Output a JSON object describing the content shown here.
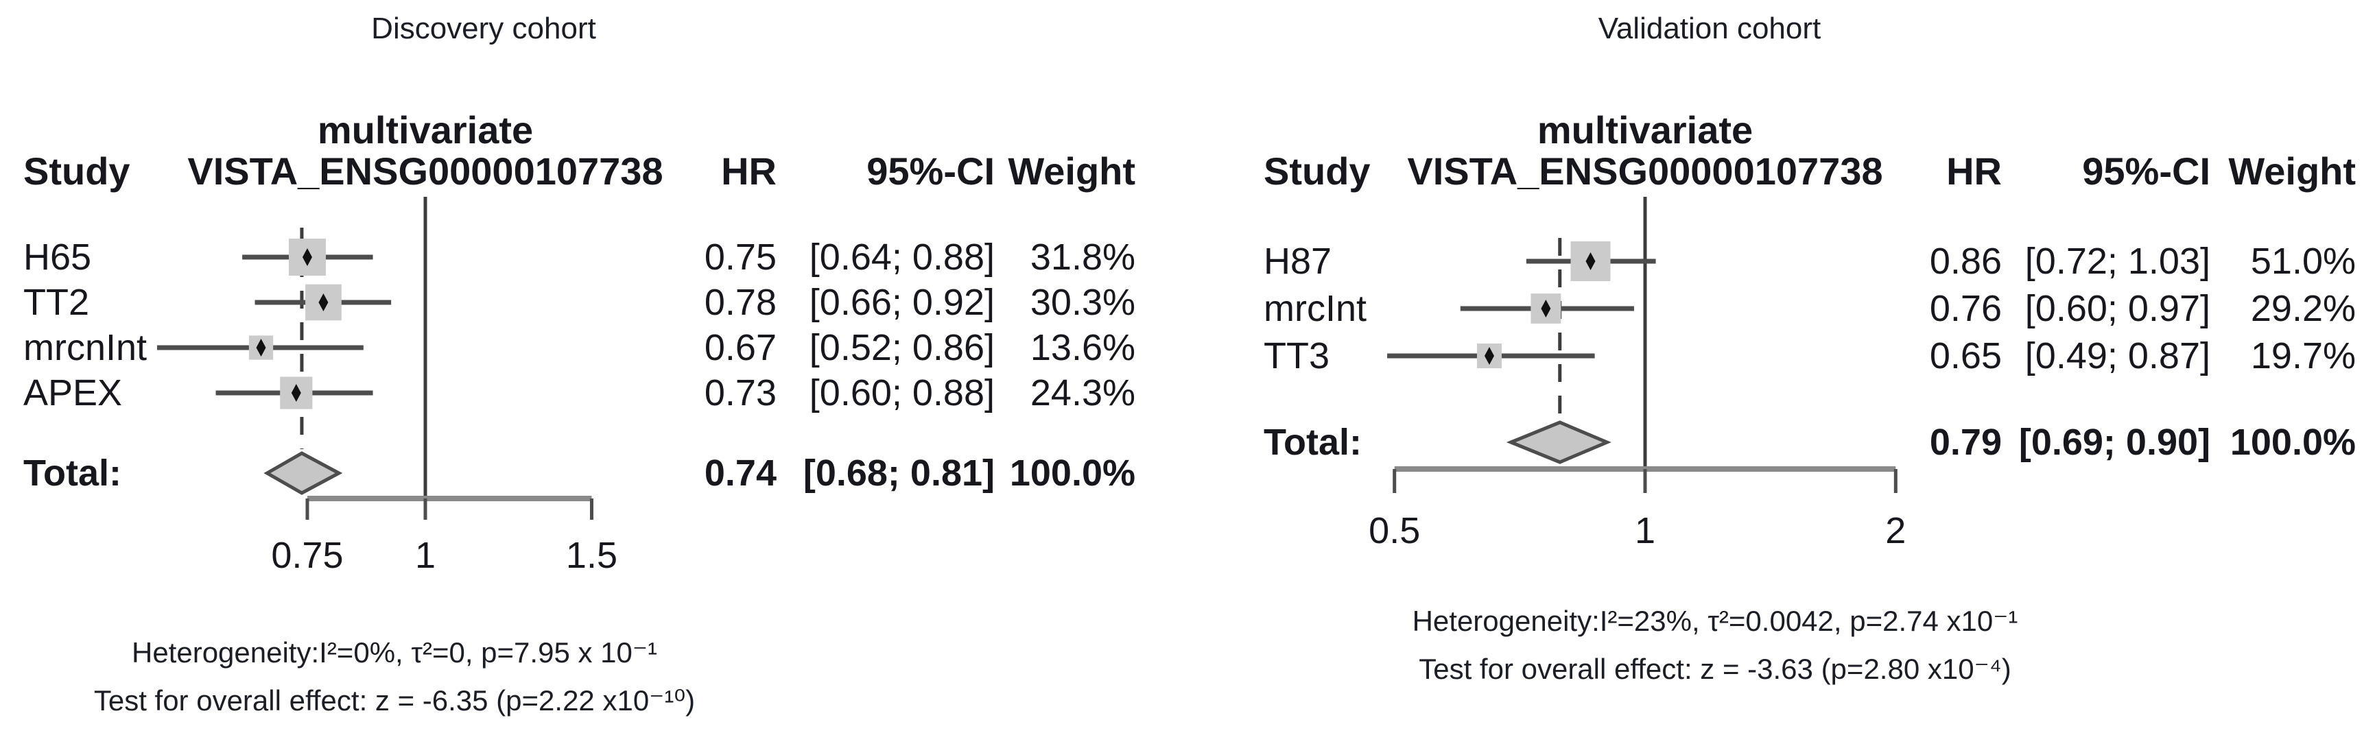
{
  "page": {
    "background": "#ffffff"
  },
  "colors": {
    "text": "#16181d",
    "square_fill": "#cbcbcb",
    "diamond_fill": "#c6c6c6",
    "diamond_border": "#4d4d4d",
    "ci_line": "#4d4d4d",
    "reference_line": "#3c3c3c",
    "dashed_line": "#3c3c3c",
    "axis_line": "#8a8a8a",
    "axis_tick": "#4d4d4d",
    "point_marker": "#101010"
  },
  "chart_data": [
    {
      "type": "forest",
      "title": "Discovery cohort",
      "columns": {
        "study": "Study",
        "plot_line1": "multivariate",
        "plot_line2": "VISTA_ENSG00000107738",
        "hr": "HR",
        "ci": "95%-CI",
        "weight": "Weight"
      },
      "x_scale": "log",
      "ref_line": 1,
      "axis_range": [
        0.75,
        1.5
      ],
      "x_tick_values": [
        0.75,
        1,
        1.5
      ],
      "x_tick_labels": [
        "0.75",
        "1",
        "1.5"
      ],
      "studies": [
        {
          "name": "H65",
          "hr": 0.75,
          "ci": [
            0.64,
            0.88
          ],
          "weight_pct": 31.8,
          "hr_label": "0.75",
          "ci_label": "[0.64; 0.88]",
          "weight_label": "31.8%"
        },
        {
          "name": "TT2",
          "hr": 0.78,
          "ci": [
            0.66,
            0.92
          ],
          "weight_pct": 30.3,
          "hr_label": "0.78",
          "ci_label": "[0.66; 0.92]",
          "weight_label": "30.3%"
        },
        {
          "name": "mrcnInt",
          "hr": 0.67,
          "ci": [
            0.52,
            0.86
          ],
          "weight_pct": 13.6,
          "hr_label": "0.67",
          "ci_label": "[0.52; 0.86]",
          "weight_label": "13.6%"
        },
        {
          "name": "APEX",
          "hr": 0.73,
          "ci": [
            0.6,
            0.88
          ],
          "weight_pct": 24.3,
          "hr_label": "0.73",
          "ci_label": "[0.60; 0.88]",
          "weight_label": "24.3%"
        }
      ],
      "total": {
        "name": "Total:",
        "hr": 0.74,
        "ci": [
          0.68,
          0.81
        ],
        "hr_label": "0.74",
        "ci_label": "[0.68; 0.81]",
        "weight_label": "100.0%"
      },
      "footer": [
        "Heterogeneity:I²=0%, τ²=0, p=7.95 x 10⁻¹",
        "Test for overall effect: z = -6.35 (p=2.22 x10⁻¹⁰)"
      ]
    },
    {
      "type": "forest",
      "title": "Validation cohort",
      "columns": {
        "study": "Study",
        "plot_line1": "multivariate",
        "plot_line2": "VISTA_ENSG00000107738",
        "hr": "HR",
        "ci": "95%-CI",
        "weight": "Weight"
      },
      "x_scale": "log",
      "ref_line": 1,
      "axis_range": [
        0.5,
        2
      ],
      "x_tick_values": [
        0.5,
        1,
        2
      ],
      "x_tick_labels": [
        "0.5",
        "1",
        "2"
      ],
      "studies": [
        {
          "name": "H87",
          "hr": 0.86,
          "ci": [
            0.72,
            1.03
          ],
          "weight_pct": 51.0,
          "hr_label": "0.86",
          "ci_label": "[0.72; 1.03]",
          "weight_label": "51.0%"
        },
        {
          "name": "mrcInt",
          "hr": 0.76,
          "ci": [
            0.6,
            0.97
          ],
          "weight_pct": 29.2,
          "hr_label": "0.76",
          "ci_label": "[0.60; 0.97]",
          "weight_label": "29.2%"
        },
        {
          "name": "TT3",
          "hr": 0.65,
          "ci": [
            0.49,
            0.87
          ],
          "weight_pct": 19.7,
          "hr_label": "0.65",
          "ci_label": "[0.49; 0.87]",
          "weight_label": "19.7%"
        }
      ],
      "total": {
        "name": "Total:",
        "hr": 0.79,
        "ci": [
          0.69,
          0.9
        ],
        "hr_label": "0.79",
        "ci_label": "[0.69; 0.90]",
        "weight_label": "100.0%"
      },
      "footer": [
        "Heterogeneity:I²=23%, τ²=0.0042, p=2.74 x10⁻¹",
        "Test for overall effect: z = -3.63 (p=2.80 x10⁻⁴)"
      ]
    }
  ]
}
